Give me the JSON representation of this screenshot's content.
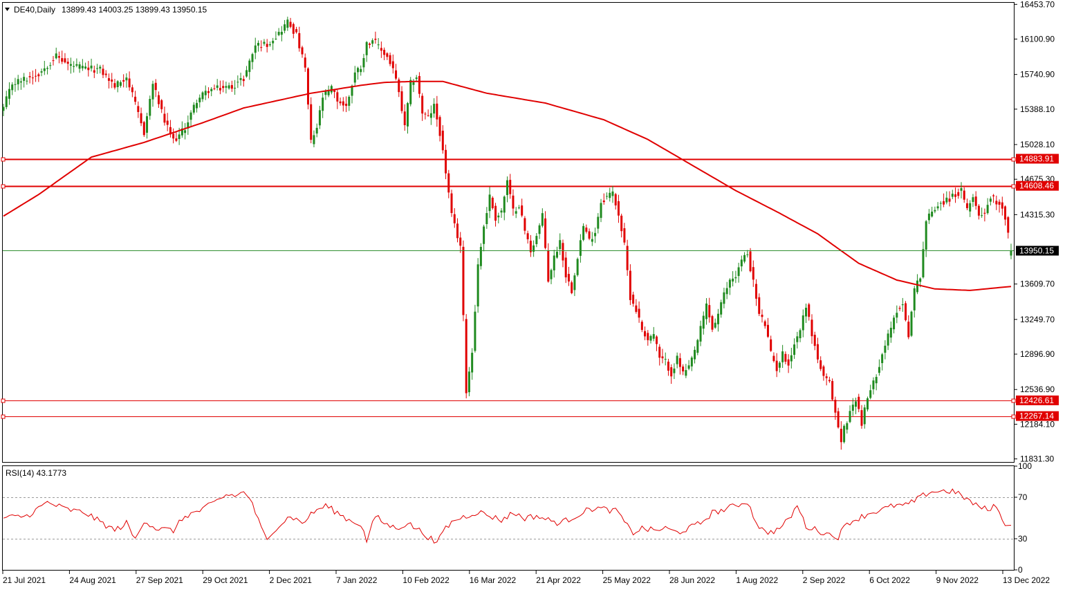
{
  "header": {
    "symbol": "DE40,Daily",
    "ohlc": "13899.43 14003.25 13899.43 13950.15"
  },
  "colors": {
    "up": "#1f8a1f",
    "down": "#e00000",
    "ma": "#e00000",
    "level": "#e00000",
    "current": "#2f8f2f",
    "rsi": "#e00000",
    "axis": "#000000",
    "label_bg": "#e00000",
    "current_label_bg": "#000000"
  },
  "chart_data": [
    {
      "type": "candlestick",
      "title": "DE40,Daily",
      "ylim": [
        11800,
        16470
      ],
      "y_ticks": [
        "16453.70",
        "16100.90",
        "15740.90",
        "15388.10",
        "15028.10",
        "14675.30",
        "14315.30",
        "13609.70",
        "13249.70",
        "12896.90",
        "12536.90",
        "12184.10",
        "11831.30"
      ],
      "x_ticks": [
        "21 Jul 2021",
        "24 Aug 2021",
        "27 Sep 2021",
        "29 Oct 2021",
        "2 Dec 2021",
        "7 Jan 2022",
        "10 Feb 2022",
        "16 Mar 2022",
        "21 Apr 2022",
        "25 May 2022",
        "28 Jun 2022",
        "1 Aug 2022",
        "2 Sep 2022",
        "6 Oct 2022",
        "9 Nov 2022",
        "13 Dec 2022"
      ],
      "close_anchors": [
        [
          0,
          15400
        ],
        [
          3,
          15650
        ],
        [
          8,
          15700
        ],
        [
          12,
          15750
        ],
        [
          18,
          15930
        ],
        [
          22,
          15840
        ],
        [
          28,
          15800
        ],
        [
          33,
          15790
        ],
        [
          38,
          15620
        ],
        [
          42,
          15720
        ],
        [
          45,
          15430
        ],
        [
          48,
          15150
        ],
        [
          51,
          15650
        ],
        [
          55,
          15260
        ],
        [
          58,
          15070
        ],
        [
          60,
          15120
        ],
        [
          62,
          15200
        ],
        [
          66,
          15480
        ],
        [
          70,
          15580
        ],
        [
          74,
          15600
        ],
        [
          78,
          15620
        ],
        [
          82,
          15700
        ],
        [
          86,
          16040
        ],
        [
          90,
          16050
        ],
        [
          94,
          16160
        ],
        [
          97,
          16280
        ],
        [
          100,
          16140
        ],
        [
          103,
          15800
        ],
        [
          105,
          15050
        ],
        [
          107,
          15200
        ],
        [
          109,
          15510
        ],
        [
          112,
          15600
        ],
        [
          114,
          15480
        ],
        [
          117,
          15410
        ],
        [
          120,
          15760
        ],
        [
          122,
          15820
        ],
        [
          124,
          16050
        ],
        [
          126,
          16100
        ],
        [
          128,
          16020
        ],
        [
          131,
          15920
        ],
        [
          133,
          15800
        ],
        [
          135,
          15550
        ],
        [
          137,
          15200
        ],
        [
          139,
          15650
        ],
        [
          141,
          15720
        ],
        [
          143,
          15350
        ],
        [
          145,
          15300
        ],
        [
          147,
          15420
        ],
        [
          149,
          15150
        ],
        [
          151,
          14750
        ],
        [
          153,
          14300
        ],
        [
          156,
          14000
        ],
        [
          158,
          12530
        ],
        [
          160,
          12920
        ],
        [
          162,
          13800
        ],
        [
          164,
          14200
        ],
        [
          166,
          14500
        ],
        [
          168,
          14280
        ],
        [
          170,
          14350
        ],
        [
          172,
          14650
        ],
        [
          174,
          14350
        ],
        [
          176,
          14420
        ],
        [
          178,
          14150
        ],
        [
          180,
          13950
        ],
        [
          182,
          14100
        ],
        [
          184,
          14300
        ],
        [
          186,
          13650
        ],
        [
          188,
          13880
        ],
        [
          190,
          14050
        ],
        [
          192,
          13700
        ],
        [
          194,
          13550
        ],
        [
          196,
          13900
        ],
        [
          198,
          14200
        ],
        [
          200,
          14050
        ],
        [
          202,
          14150
        ],
        [
          204,
          14450
        ],
        [
          206,
          14500
        ],
        [
          208,
          14540
        ],
        [
          210,
          14320
        ],
        [
          212,
          14000
        ],
        [
          214,
          13480
        ],
        [
          216,
          13350
        ],
        [
          218,
          13150
        ],
        [
          220,
          13050
        ],
        [
          222,
          13100
        ],
        [
          224,
          12850
        ],
        [
          226,
          12820
        ],
        [
          228,
          12700
        ],
        [
          230,
          12850
        ],
        [
          232,
          12700
        ],
        [
          234,
          12750
        ],
        [
          236,
          12930
        ],
        [
          238,
          13150
        ],
        [
          240,
          13400
        ],
        [
          242,
          13150
        ],
        [
          244,
          13300
        ],
        [
          246,
          13500
        ],
        [
          248,
          13650
        ],
        [
          250,
          13700
        ],
        [
          252,
          13850
        ],
        [
          254,
          13920
        ],
        [
          256,
          13630
        ],
        [
          258,
          13300
        ],
        [
          260,
          13200
        ],
        [
          262,
          12900
        ],
        [
          264,
          12750
        ],
        [
          266,
          12900
        ],
        [
          268,
          12800
        ],
        [
          270,
          13000
        ],
        [
          272,
          13150
        ],
        [
          274,
          13400
        ],
        [
          276,
          13100
        ],
        [
          278,
          12850
        ],
        [
          280,
          12650
        ],
        [
          282,
          12600
        ],
        [
          284,
          12300
        ],
        [
          286,
          12000
        ],
        [
          287,
          12150
        ],
        [
          289,
          12300
        ],
        [
          291,
          12450
        ],
        [
          293,
          12200
        ],
        [
          295,
          12450
        ],
        [
          297,
          12600
        ],
        [
          299,
          12800
        ],
        [
          301,
          13000
        ],
        [
          303,
          13150
        ],
        [
          305,
          13350
        ],
        [
          307,
          13400
        ],
        [
          309,
          13100
        ],
        [
          311,
          13550
        ],
        [
          313,
          13700
        ],
        [
          315,
          14250
        ],
        [
          317,
          14350
        ],
        [
          319,
          14420
        ],
        [
          321,
          14450
        ],
        [
          323,
          14480
        ],
        [
          325,
          14520
        ],
        [
          327,
          14550
        ],
        [
          329,
          14350
        ],
        [
          331,
          14520
        ],
        [
          333,
          14300
        ],
        [
          335,
          14350
        ],
        [
          337,
          14500
        ],
        [
          339,
          14450
        ],
        [
          341,
          14400
        ],
        [
          343,
          14150
        ],
        [
          344,
          13950
        ]
      ],
      "moving_average": {
        "name": "MA",
        "anchors": [
          [
            0,
            14300
          ],
          [
            12,
            14520
          ],
          [
            30,
            14900
          ],
          [
            48,
            15050
          ],
          [
            68,
            15250
          ],
          [
            82,
            15400
          ],
          [
            105,
            15550
          ],
          [
            122,
            15630
          ],
          [
            130,
            15660
          ],
          [
            140,
            15670
          ],
          [
            150,
            15670
          ],
          [
            165,
            15550
          ],
          [
            185,
            15450
          ],
          [
            205,
            15280
          ],
          [
            220,
            15080
          ],
          [
            235,
            14820
          ],
          [
            250,
            14560
          ],
          [
            265,
            14330
          ],
          [
            278,
            14120
          ],
          [
            292,
            13820
          ],
          [
            305,
            13650
          ],
          [
            318,
            13560
          ],
          [
            330,
            13545
          ],
          [
            344,
            13585
          ]
        ]
      },
      "levels": [
        {
          "label": "14883.91",
          "value": 14883.91
        },
        {
          "label": "14608.46",
          "value": 14608.46
        },
        {
          "label": "12426.61",
          "value": 12426.61
        },
        {
          "label": "12267.14",
          "value": 12267.14
        }
      ],
      "current_price": {
        "label": "13950.15",
        "value": 13950.15
      }
    },
    {
      "type": "line",
      "title": "RSI(14) 43.1773",
      "ylim": [
        0,
        100
      ],
      "y_ticks": [
        "100",
        "70",
        "30",
        "0"
      ],
      "levels": [
        70,
        30
      ],
      "anchors": [
        [
          0,
          50
        ],
        [
          8,
          52
        ],
        [
          15,
          65
        ],
        [
          22,
          58
        ],
        [
          28,
          55
        ],
        [
          32,
          48
        ],
        [
          38,
          38
        ],
        [
          42,
          45
        ],
        [
          45,
          29
        ],
        [
          48,
          48
        ],
        [
          52,
          40
        ],
        [
          58,
          38
        ],
        [
          62,
          52
        ],
        [
          68,
          58
        ],
        [
          72,
          65
        ],
        [
          76,
          72
        ],
        [
          80,
          72
        ],
        [
          82,
          75
        ],
        [
          84,
          70
        ],
        [
          86,
          55
        ],
        [
          88,
          40
        ],
        [
          90,
          28
        ],
        [
          92,
          38
        ],
        [
          95,
          45
        ],
        [
          98,
          52
        ],
        [
          102,
          45
        ],
        [
          106,
          56
        ],
        [
          110,
          62
        ],
        [
          114,
          55
        ],
        [
          118,
          48
        ],
        [
          122,
          44
        ],
        [
          124,
          28
        ],
        [
          127,
          52
        ],
        [
          130,
          45
        ],
        [
          134,
          40
        ],
        [
          138,
          45
        ],
        [
          142,
          38
        ],
        [
          146,
          30
        ],
        [
          148,
          24
        ],
        [
          150,
          38
        ],
        [
          154,
          48
        ],
        [
          158,
          52
        ],
        [
          162,
          56
        ],
        [
          166,
          52
        ],
        [
          170,
          48
        ],
        [
          174,
          55
        ],
        [
          178,
          50
        ],
        [
          182,
          52
        ],
        [
          186,
          48
        ],
        [
          190,
          45
        ],
        [
          194,
          50
        ],
        [
          198,
          56
        ],
        [
          202,
          60
        ],
        [
          206,
          58
        ],
        [
          210,
          56
        ],
        [
          212,
          45
        ],
        [
          215,
          36
        ],
        [
          218,
          40
        ],
        [
          222,
          38
        ],
        [
          226,
          40
        ],
        [
          230,
          36
        ],
        [
          234,
          40
        ],
        [
          238,
          45
        ],
        [
          242,
          55
        ],
        [
          246,
          58
        ],
        [
          250,
          62
        ],
        [
          254,
          66
        ],
        [
          256,
          52
        ],
        [
          258,
          42
        ],
        [
          260,
          36
        ],
        [
          264,
          38
        ],
        [
          268,
          48
        ],
        [
          271,
          62
        ],
        [
          274,
          42
        ],
        [
          278,
          38
        ],
        [
          282,
          34
        ],
        [
          285,
          32
        ],
        [
          288,
          45
        ],
        [
          292,
          50
        ],
        [
          296,
          55
        ],
        [
          300,
          58
        ],
        [
          304,
          62
        ],
        [
          308,
          62
        ],
        [
          312,
          68
        ],
        [
          316,
          75
        ],
        [
          320,
          76
        ],
        [
          324,
          76
        ],
        [
          328,
          70
        ],
        [
          332,
          62
        ],
        [
          336,
          58
        ],
        [
          338,
          62
        ],
        [
          340,
          55
        ],
        [
          342,
          45
        ],
        [
          344,
          43
        ]
      ]
    }
  ]
}
